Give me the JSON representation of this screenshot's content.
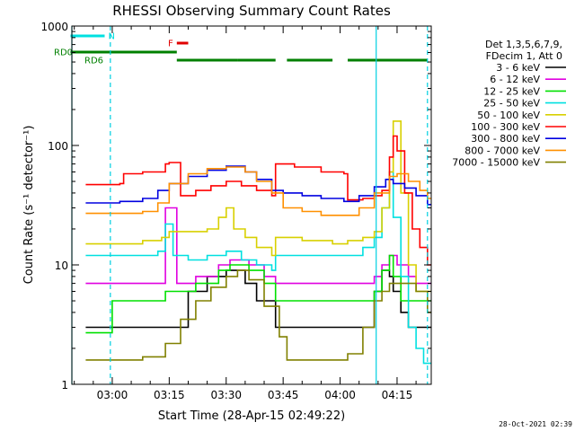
{
  "chart_data": {
    "type": "line",
    "title": "RHESSI Observing Summary Count Rates",
    "xlabel": "Start Time (28-Apr-15 02:49:22)",
    "ylabel": "Count Rate (s⁻¹ detector⁻¹)",
    "ylim": [
      1,
      1000
    ],
    "yscale": "log",
    "xlim": [
      "02:49:22",
      "04:24:00"
    ],
    "x_ticks": [
      "03:00",
      "03:15",
      "03:30",
      "03:45",
      "04:00",
      "04:15"
    ],
    "y_ticks": [
      "1",
      "10",
      "100",
      "1000"
    ],
    "legend": {
      "placement": "right",
      "header": [
        "Det 1,3,5,6,7,9,",
        "FDecim 1, Att 0"
      ],
      "entries": [
        "3 - 6 keV",
        "6 - 12 keV",
        "12 - 25 keV",
        "25 - 50 keV",
        "50 - 100 keV",
        "100 - 300 keV",
        "300 - 800 keV",
        "800 - 7000 keV",
        "7000 - 15000 keV"
      ]
    },
    "series": [
      {
        "name": "3 - 6 keV",
        "color": "#000000",
        "times": [
          "02:53",
          "03:03",
          "03:08",
          "03:14",
          "03:20",
          "03:25",
          "03:30",
          "03:35",
          "03:38",
          "03:43",
          "03:45",
          "03:52",
          "03:58",
          "04:02",
          "04:06",
          "04:09",
          "04:11",
          "04:13",
          "04:14",
          "04:16",
          "04:18",
          "04:20",
          "04:22"
        ],
        "values": [
          3,
          3,
          3,
          3,
          6,
          8,
          9,
          7,
          5,
          3,
          3,
          3,
          3,
          3,
          3,
          6,
          9,
          8,
          6,
          4,
          3,
          3,
          3
        ]
      },
      {
        "name": "6 - 12 keV",
        "color": "#e000e0",
        "times": [
          "02:53",
          "03:02",
          "03:08",
          "03:12",
          "03:14",
          "03:17",
          "03:22",
          "03:28",
          "03:31",
          "03:36",
          "03:40",
          "03:43",
          "03:47",
          "03:55",
          "04:01",
          "04:06",
          "04:09",
          "04:11",
          "04:13",
          "04:15",
          "04:18",
          "04:20",
          "04:23"
        ],
        "values": [
          7,
          7,
          7,
          7,
          30,
          7,
          8,
          10,
          11,
          10,
          8,
          7,
          7,
          7,
          7,
          7,
          8,
          10,
          12,
          10,
          8,
          7,
          7
        ]
      },
      {
        "name": "12 - 25 keV",
        "color": "#00e000",
        "times": [
          "02:53",
          "02:59",
          "03:00",
          "03:08",
          "03:14",
          "03:17",
          "03:22",
          "03:28",
          "03:31",
          "03:36",
          "03:40",
          "03:43",
          "03:47",
          "03:55",
          "04:01",
          "04:06",
          "04:09",
          "04:11",
          "04:13",
          "04:14",
          "04:16",
          "04:18",
          "04:23"
        ],
        "values": [
          2.7,
          2.7,
          5,
          5,
          6,
          6,
          7,
          9,
          10,
          9,
          7,
          5,
          5,
          5,
          5,
          5,
          6,
          9,
          12,
          8,
          5,
          5,
          5
        ]
      },
      {
        "name": "25 - 50 keV",
        "color": "#00e0e0",
        "times": [
          "02:53",
          "03:02",
          "03:08",
          "03:12",
          "03:14",
          "03:16",
          "03:20",
          "03:25",
          "03:30",
          "03:34",
          "03:38",
          "03:42",
          "03:43",
          "03:50",
          "03:58",
          "04:02",
          "04:06",
          "04:09",
          "04:11",
          "04:13",
          "04:14",
          "04:16",
          "04:18",
          "04:20",
          "04:22"
        ],
        "values": [
          12,
          12,
          12,
          13,
          22,
          12,
          11,
          12,
          13,
          11,
          10,
          9,
          12,
          12,
          12,
          12,
          14,
          17,
          30,
          60,
          25,
          8,
          3,
          2,
          1.5
        ]
      },
      {
        "name": "50 - 100 keV",
        "color": "#d8d000",
        "times": [
          "02:53",
          "03:02",
          "03:08",
          "03:13",
          "03:15",
          "03:20",
          "03:25",
          "03:28",
          "03:30",
          "03:32",
          "03:35",
          "03:38",
          "03:42",
          "03:43",
          "03:50",
          "03:58",
          "04:02",
          "04:06",
          "04:09",
          "04:11",
          "04:13",
          "04:14",
          "04:16",
          "04:18",
          "04:20"
        ],
        "values": [
          15,
          15,
          16,
          17,
          19,
          19,
          20,
          25,
          30,
          20,
          17,
          14,
          12,
          17,
          16,
          15,
          16,
          17,
          19,
          30,
          60,
          160,
          40,
          10,
          6
        ]
      },
      {
        "name": "100 - 300 keV",
        "color": "#ff0000",
        "times": [
          "02:53",
          "03:02",
          "03:03",
          "03:08",
          "03:14",
          "03:15",
          "03:18",
          "03:22",
          "03:26",
          "03:30",
          "03:34",
          "03:38",
          "03:42",
          "03:43",
          "03:48",
          "03:55",
          "04:01",
          "04:02",
          "04:06",
          "04:09",
          "04:11",
          "04:13",
          "04:14",
          "04:15",
          "04:17",
          "04:19",
          "04:21",
          "04:23"
        ],
        "values": [
          47,
          48,
          58,
          60,
          70,
          72,
          38,
          42,
          46,
          50,
          46,
          42,
          38,
          70,
          66,
          60,
          58,
          35,
          36,
          38,
          42,
          80,
          120,
          90,
          40,
          20,
          14,
          10
        ]
      },
      {
        "name": "300 - 800 keV",
        "color": "#0000e0",
        "times": [
          "02:53",
          "03:02",
          "03:08",
          "03:12",
          "03:15",
          "03:20",
          "03:25",
          "03:30",
          "03:35",
          "03:38",
          "03:42",
          "03:45",
          "03:50",
          "03:55",
          "04:01",
          "04:05",
          "04:09",
          "04:12",
          "04:14",
          "04:17",
          "04:20",
          "04:23"
        ],
        "values": [
          33,
          34,
          36,
          42,
          48,
          55,
          62,
          67,
          60,
          52,
          42,
          40,
          38,
          36,
          34,
          38,
          45,
          52,
          48,
          44,
          38,
          32
        ]
      },
      {
        "name": "800 - 7000 keV",
        "color": "#ff9000",
        "times": [
          "02:53",
          "03:02",
          "03:08",
          "03:12",
          "03:15",
          "03:20",
          "03:25",
          "03:30",
          "03:35",
          "03:38",
          "03:42",
          "03:45",
          "03:50",
          "03:55",
          "04:01",
          "04:05",
          "04:09",
          "04:13",
          "04:15",
          "04:18",
          "04:21",
          "04:23"
        ],
        "values": [
          27,
          27,
          28,
          33,
          48,
          58,
          64,
          66,
          60,
          50,
          40,
          30,
          28,
          26,
          26,
          30,
          40,
          55,
          58,
          50,
          42,
          36
        ]
      },
      {
        "name": "7000 - 15000 keV",
        "color": "#808000",
        "times": [
          "02:53",
          "03:00",
          "03:08",
          "03:14",
          "03:18",
          "03:22",
          "03:26",
          "03:30",
          "03:33",
          "03:36",
          "03:40",
          "03:44",
          "03:46",
          "03:52",
          "03:58",
          "04:02",
          "04:06",
          "04:09",
          "04:11",
          "04:13",
          "04:16",
          "04:20",
          "04:23"
        ],
        "values": [
          1.6,
          1.6,
          1.7,
          2.2,
          3.5,
          5,
          6.5,
          8,
          9,
          7.5,
          4.5,
          2.5,
          1.6,
          1.6,
          1.6,
          1.8,
          3,
          5,
          6,
          7,
          7,
          6,
          4
        ]
      }
    ],
    "flags": [
      {
        "label": "N",
        "color": "#00e0e0",
        "segments": [
          [
            "02:49",
            "02:58"
          ]
        ]
      },
      {
        "label": "F",
        "color": "#e00000",
        "segments": [
          [
            "03:17",
            "03:20"
          ]
        ]
      },
      {
        "label": "RD0",
        "color": "#008000",
        "segments": [
          [
            "02:49",
            "03:17"
          ]
        ]
      },
      {
        "label": "RD6",
        "color": "#008000",
        "segments": [
          [
            "03:17",
            "03:33"
          ],
          [
            "03:33",
            "03:43"
          ],
          [
            "03:46",
            "03:58"
          ],
          [
            "04:02",
            "04:23"
          ]
        ]
      }
    ],
    "night_intervals": [
      [
        "02:49:22",
        "02:59:30"
      ],
      [
        "04:09:30",
        "04:23:00"
      ]
    ]
  },
  "timestamp": "28-Oct-2021 02:39"
}
